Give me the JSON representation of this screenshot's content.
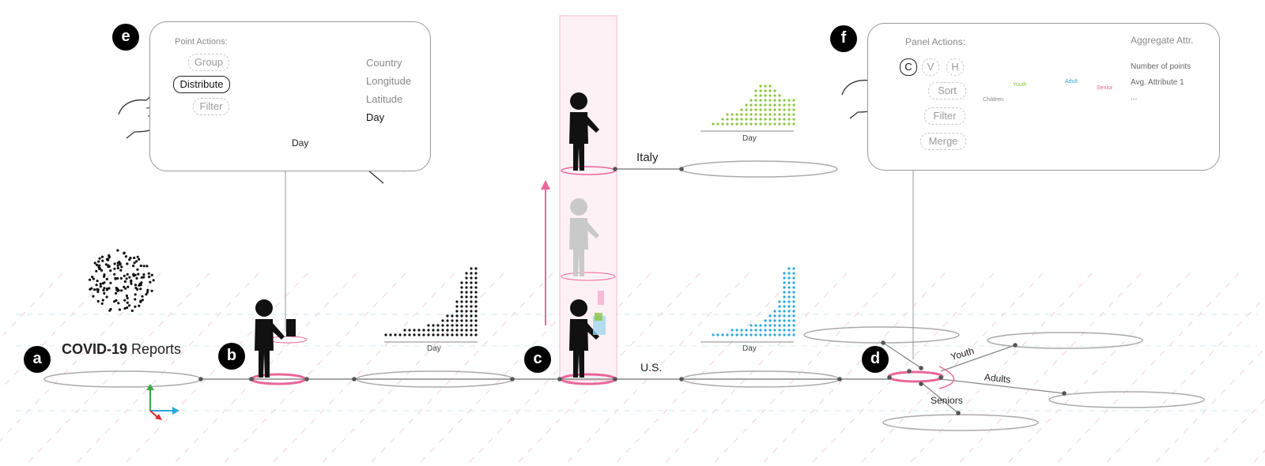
{
  "steps": [
    {
      "badge": "a",
      "title_bold": "COVID-19",
      "title_rest": " Reports"
    },
    {
      "badge": "b"
    },
    {
      "badge": "c"
    },
    {
      "badge": "d"
    },
    {
      "badge": "e"
    },
    {
      "badge": "f"
    }
  ],
  "branch_labels": {
    "italy": "Italy",
    "us": "U.S.",
    "youth": "Youth",
    "adults": "Adults",
    "seniors": "Seniors"
  },
  "histogram_axis_label": "Day",
  "point_actions": {
    "title": "Point Actions:",
    "buttons": [
      "Group",
      "Distribute",
      "Filter"
    ],
    "active_button": "Distribute",
    "attributes": [
      "Country",
      "Longitude",
      "Latitude",
      "Day"
    ],
    "active_attribute": "Day",
    "drag_axis_label": "Day"
  },
  "panel_actions": {
    "title": "Panel Actions:",
    "layout_buttons": [
      "C",
      "V",
      "H"
    ],
    "buttons": [
      "Sort",
      "Filter",
      "Merge"
    ],
    "aggregate_title": "Aggregate Attr.",
    "aggregate_items": [
      "Number of points",
      "Avg. Attribute 1",
      "..."
    ],
    "group_labels": [
      "Children",
      "Youth",
      "Adult",
      "Senior"
    ]
  },
  "colors": {
    "highlight": "#e8679a",
    "italy": "#8cc63f",
    "us": "#29a8e0",
    "senior": "#f29ac0",
    "axis_x": "#29a8e0",
    "axis_y": "#3aa845",
    "axis_z": "#e02b2b"
  }
}
